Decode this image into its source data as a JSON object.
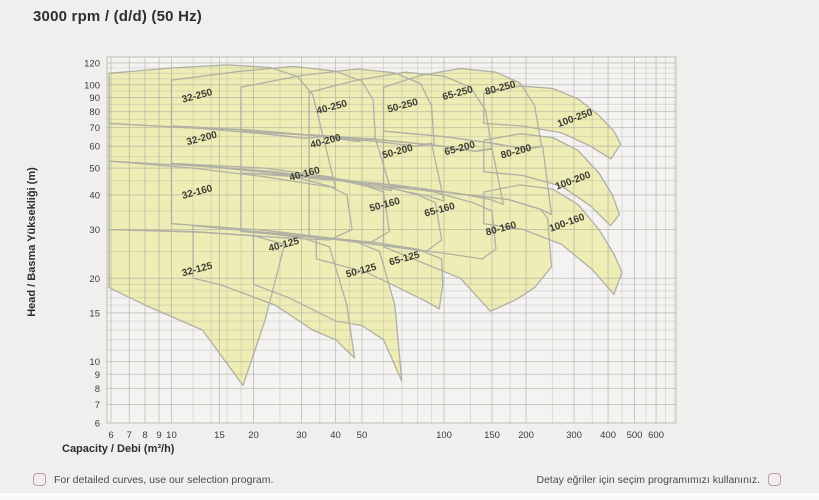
{
  "title": "3000 rpm / (d/d) (50 Hz)",
  "footer": {
    "left_text": "For detailed curves, use our selection program.",
    "right_text": "Detay eğriler için seçim programımızı kullanınız."
  },
  "colors": {
    "background": "#f0efed",
    "plot_background": "#f4f3f1",
    "grid": "#9e9e98",
    "plot_border": "#bcbcb6",
    "region_fill": "#eeedb5",
    "region_stroke": "#b0b0a4",
    "region_label": "#3c3c34",
    "tick_text": "#3a3a3a",
    "accent_circle": "#bf9aa6"
  },
  "chart_data": {
    "type": "area",
    "title": "3000 rpm / (d/d) (50 Hz)",
    "xlabel": "Capacity / Debi (m³/h)",
    "ylabel": "Head / Basma Yükselďği (m)",
    "ylabel_text": "Head / Basma Yüksekliği (m)",
    "x_scale": "log",
    "y_scale": "log",
    "xlim": [
      5.8,
      710
    ],
    "ylim": [
      6,
      126
    ],
    "x_ticks": [
      6,
      7,
      8,
      9,
      10,
      15,
      20,
      30,
      40,
      50,
      100,
      150,
      200,
      300,
      400,
      500,
      600
    ],
    "x_minor": [
      12,
      14,
      16,
      18,
      25,
      35,
      45,
      60,
      70,
      80,
      90,
      125,
      175,
      250,
      350,
      450,
      550,
      650,
      700
    ],
    "y_ticks": [
      6,
      7,
      8,
      9,
      10,
      15,
      20,
      30,
      40,
      50,
      60,
      70,
      80,
      90,
      100,
      120
    ],
    "y_minor": [
      11,
      12,
      13,
      14,
      16,
      17,
      18,
      19,
      25,
      35,
      45,
      55,
      65,
      75,
      85,
      95,
      105,
      110,
      115
    ],
    "grid": true,
    "legend": "none",
    "regions": [
      {
        "label": "32-125",
        "label_pos": [
          12.5,
          21
        ],
        "rot": -15,
        "points": [
          [
            5.9,
            30
          ],
          [
            12,
            29.5
          ],
          [
            20,
            28.5
          ],
          [
            26,
            26.5
          ],
          [
            22,
            14
          ],
          [
            18.3,
            8.2
          ],
          [
            13,
            13
          ],
          [
            8,
            16
          ],
          [
            5.9,
            18.5
          ]
        ]
      },
      {
        "label": "32-160",
        "label_pos": [
          12.5,
          40
        ],
        "rot": -15,
        "points": [
          [
            5.9,
            53
          ],
          [
            14,
            50.5
          ],
          [
            26,
            47.5
          ],
          [
            38,
            43
          ],
          [
            44,
            40
          ],
          [
            46,
            30
          ],
          [
            38,
            27.5
          ],
          [
            26,
            28
          ],
          [
            13,
            29.3
          ],
          [
            5.9,
            30
          ]
        ]
      },
      {
        "label": "32-200",
        "label_pos": [
          13,
          62.5
        ],
        "rot": -15,
        "points": [
          [
            5.9,
            72.5
          ],
          [
            13,
            69.5
          ],
          [
            22,
            66.5
          ],
          [
            31,
            64
          ],
          [
            36,
            65
          ],
          [
            40,
            42.5
          ],
          [
            34,
            43.5
          ],
          [
            22,
            46.5
          ],
          [
            12,
            50
          ],
          [
            5.9,
            53
          ]
        ]
      },
      {
        "label": "32-250",
        "label_pos": [
          12.5,
          89
        ],
        "rot": -15,
        "points": [
          [
            5.9,
            110
          ],
          [
            10,
            115
          ],
          [
            16,
            118
          ],
          [
            23,
            115.5
          ],
          [
            29,
            107
          ],
          [
            33,
            92
          ],
          [
            36,
            65
          ],
          [
            31,
            64
          ],
          [
            22,
            66.5
          ],
          [
            13,
            69.5
          ],
          [
            5.9,
            72.5
          ]
        ]
      },
      {
        "label": "40-125",
        "label_pos": [
          26,
          25.8
        ],
        "rot": -15,
        "points": [
          [
            12,
            31
          ],
          [
            20,
            29.5
          ],
          [
            30,
            28
          ],
          [
            38,
            26
          ],
          [
            44,
            16
          ],
          [
            47,
            10.3
          ],
          [
            40,
            12
          ],
          [
            33,
            13
          ],
          [
            24,
            16
          ],
          [
            15,
            19
          ],
          [
            12,
            20
          ]
        ]
      },
      {
        "label": "40-160",
        "label_pos": [
          31,
          46.5
        ],
        "rot": -15,
        "points": [
          [
            10,
            52
          ],
          [
            22,
            50
          ],
          [
            38,
            46.5
          ],
          [
            52,
            43
          ],
          [
            60,
            41
          ],
          [
            63,
            29.5
          ],
          [
            54,
            27
          ],
          [
            40,
            27.8
          ],
          [
            22,
            29.8
          ],
          [
            10,
            31.5
          ]
        ]
      },
      {
        "label": "40-200",
        "label_pos": [
          37,
          61
        ],
        "rot": -15,
        "points": [
          [
            10,
            71
          ],
          [
            20,
            68.5
          ],
          [
            34,
            65.5
          ],
          [
            48,
            62.5
          ],
          [
            56,
            64
          ],
          [
            64,
            41.5
          ],
          [
            56,
            42.5
          ],
          [
            42,
            45
          ],
          [
            24,
            48.5
          ],
          [
            10,
            52
          ]
        ]
      },
      {
        "label": "40-250",
        "label_pos": [
          39,
          81
        ],
        "rot": -15,
        "points": [
          [
            10,
            104
          ],
          [
            18,
            112
          ],
          [
            28,
            116.5
          ],
          [
            40,
            112
          ],
          [
            50,
            103
          ],
          [
            55,
            88
          ],
          [
            56,
            64
          ],
          [
            48,
            62.5
          ],
          [
            34,
            65.5
          ],
          [
            20,
            68.5
          ],
          [
            10,
            71
          ]
        ]
      },
      {
        "label": "50-125",
        "label_pos": [
          50,
          20.8
        ],
        "rot": -15,
        "points": [
          [
            20,
            29.5
          ],
          [
            32,
            28.5
          ],
          [
            48,
            27
          ],
          [
            58,
            25
          ],
          [
            66,
            16
          ],
          [
            70,
            8.5
          ],
          [
            60,
            12
          ],
          [
            50,
            13.5
          ],
          [
            40,
            14
          ],
          [
            27,
            17
          ],
          [
            20,
            19
          ]
        ]
      },
      {
        "label": "50-160",
        "label_pos": [
          61,
          36
        ],
        "rot": -15,
        "points": [
          [
            18,
            48
          ],
          [
            36,
            46.5
          ],
          [
            58,
            43.5
          ],
          [
            80,
            40
          ],
          [
            93,
            37.5
          ],
          [
            98,
            27.5
          ],
          [
            86,
            25
          ],
          [
            64,
            26
          ],
          [
            38,
            27.8
          ],
          [
            18,
            29.5
          ]
        ]
      },
      {
        "label": "50-200",
        "label_pos": [
          68,
          56
        ],
        "rot": -15,
        "points": [
          [
            18,
            68
          ],
          [
            34,
            65.5
          ],
          [
            56,
            62.5
          ],
          [
            78,
            60
          ],
          [
            90,
            61.5
          ],
          [
            100,
            38
          ],
          [
            88,
            39.5
          ],
          [
            66,
            42
          ],
          [
            40,
            45.5
          ],
          [
            18,
            48
          ]
        ]
      },
      {
        "label": "50-250",
        "label_pos": [
          71,
          82
        ],
        "rot": -15,
        "points": [
          [
            18,
            98
          ],
          [
            30,
            108
          ],
          [
            48,
            114
          ],
          [
            66,
            110.5
          ],
          [
            82,
            101
          ],
          [
            90,
            84
          ],
          [
            92,
            61
          ],
          [
            78,
            60
          ],
          [
            56,
            62.5
          ],
          [
            34,
            65.5
          ],
          [
            18,
            68
          ]
        ]
      },
      {
        "label": "65-125",
        "label_pos": [
          72,
          23
        ],
        "rot": -15,
        "points": [
          [
            34,
            28
          ],
          [
            55,
            27
          ],
          [
            80,
            25.5
          ],
          [
            98,
            23.5
          ],
          [
            99,
            19
          ],
          [
            96,
            15.5
          ],
          [
            86,
            16.5
          ],
          [
            72,
            18
          ],
          [
            52,
            21
          ],
          [
            34,
            23.5
          ]
        ]
      },
      {
        "label": "65-160",
        "label_pos": [
          97,
          34.5
        ],
        "rot": -15,
        "points": [
          [
            32,
            46
          ],
          [
            58,
            44
          ],
          [
            92,
            41
          ],
          [
            128,
            37.5
          ],
          [
            150,
            35
          ],
          [
            155,
            25.5
          ],
          [
            138,
            23.5
          ],
          [
            104,
            24.5
          ],
          [
            62,
            26.2
          ],
          [
            32,
            28.5
          ]
        ]
      },
      {
        "label": "65-200",
        "label_pos": [
          115,
          57.5
        ],
        "rot": -15,
        "points": [
          [
            32,
            66
          ],
          [
            56,
            63.5
          ],
          [
            92,
            60.5
          ],
          [
            130,
            57.5
          ],
          [
            150,
            59
          ],
          [
            165,
            37
          ],
          [
            148,
            38.5
          ],
          [
            112,
            40.5
          ],
          [
            66,
            43.5
          ],
          [
            32,
            46
          ]
        ]
      },
      {
        "label": "65-250",
        "label_pos": [
          113,
          91
        ],
        "rot": -15,
        "points": [
          [
            32,
            94
          ],
          [
            48,
            104
          ],
          [
            72,
            111
          ],
          [
            100,
            107.5
          ],
          [
            125,
            98
          ],
          [
            142,
            81
          ],
          [
            150,
            58.5
          ],
          [
            130,
            57.5
          ],
          [
            92,
            60.5
          ],
          [
            56,
            63.5
          ],
          [
            32,
            66
          ]
        ]
      },
      {
        "label": "80-160",
        "label_pos": [
          163,
          29.5
        ],
        "rot": -15,
        "points": [
          [
            60,
            43
          ],
          [
            100,
            41
          ],
          [
            172,
            38.5
          ],
          [
            226,
            35.5
          ],
          [
            240,
            33
          ],
          [
            248,
            22
          ],
          [
            215,
            18.5
          ],
          [
            185,
            16.8
          ],
          [
            148,
            15.2
          ],
          [
            115,
            20
          ],
          [
            60,
            26
          ]
        ]
      },
      {
        "label": "80-200",
        "label_pos": [
          185,
          56
        ],
        "rot": -15,
        "points": [
          [
            60,
            68
          ],
          [
            100,
            65
          ],
          [
            150,
            61.5
          ],
          [
            200,
            58.5
          ],
          [
            230,
            60
          ],
          [
            248,
            34
          ],
          [
            226,
            35.5
          ],
          [
            172,
            38.5
          ],
          [
            100,
            41
          ],
          [
            60,
            43
          ]
        ]
      },
      {
        "label": "80-250",
        "label_pos": [
          162,
          95
        ],
        "rot": -15,
        "points": [
          [
            60,
            98
          ],
          [
            82,
            108
          ],
          [
            115,
            114.5
          ],
          [
            155,
            111
          ],
          [
            190,
            101.5
          ],
          [
            215,
            84
          ],
          [
            228,
            60
          ],
          [
            200,
            58.5
          ],
          [
            150,
            61.5
          ],
          [
            100,
            65
          ],
          [
            60,
            68
          ]
        ]
      },
      {
        "label": "100-160",
        "label_pos": [
          285,
          31
        ],
        "rot": -20,
        "points": [
          [
            140,
            41
          ],
          [
            190,
            43.5
          ],
          [
            250,
            42
          ],
          [
            310,
            37
          ],
          [
            370,
            30
          ],
          [
            420,
            24.5
          ],
          [
            450,
            21
          ],
          [
            420,
            17.5
          ],
          [
            350,
            21.5
          ],
          [
            270,
            26.5
          ],
          [
            195,
            30
          ],
          [
            140,
            31.5
          ]
        ]
      },
      {
        "label": "100-200",
        "label_pos": [
          300,
          44
        ],
        "rot": -20,
        "points": [
          [
            140,
            63
          ],
          [
            190,
            66.5
          ],
          [
            250,
            64.5
          ],
          [
            310,
            58
          ],
          [
            370,
            48
          ],
          [
            415,
            40
          ],
          [
            440,
            34
          ],
          [
            408,
            31
          ],
          [
            345,
            36.5
          ],
          [
            270,
            43
          ],
          [
            195,
            47
          ],
          [
            140,
            48.5
          ]
        ]
      },
      {
        "label": "100-250",
        "label_pos": [
          305,
          74
        ],
        "rot": -20,
        "points": [
          [
            140,
            93
          ],
          [
            190,
            99
          ],
          [
            250,
            97
          ],
          [
            310,
            89
          ],
          [
            370,
            77.5
          ],
          [
            420,
            68
          ],
          [
            445,
            61
          ],
          [
            410,
            54
          ],
          [
            345,
            60
          ],
          [
            270,
            67
          ],
          [
            195,
            71
          ],
          [
            140,
            72.5
          ]
        ]
      }
    ]
  }
}
